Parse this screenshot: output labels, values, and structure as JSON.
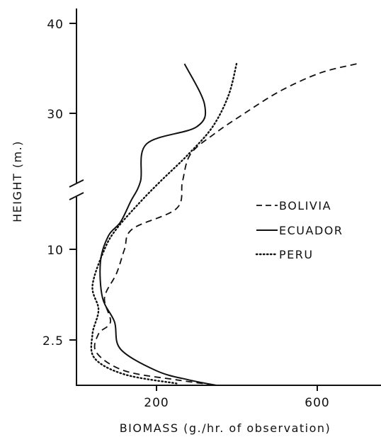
{
  "chart_data": {
    "type": "line",
    "title": "",
    "xlabel": "BIOMASS (g./hr. of observation)",
    "ylabel": "HEIGHT (m.)",
    "xlim": [
      0,
      700
    ],
    "y_tick_labels": [
      "2.5",
      "10",
      "30",
      "40"
    ],
    "x_tick_labels": [
      "200",
      "600"
    ],
    "x_ticks": [
      200,
      600
    ],
    "y_axis_note": "axis broken between 10 and 30",
    "grid": false,
    "legend_position": "right",
    "series": [
      {
        "name": "BOLIVIA",
        "style": "dashed",
        "points": [
          {
            "x": 700,
            "y": 35.5
          },
          {
            "x": 610,
            "y": 34.5
          },
          {
            "x": 510,
            "y": 32.5
          },
          {
            "x": 420,
            "y": 30
          },
          {
            "x": 345,
            "y": 27
          },
          {
            "x": 285,
            "y": 24
          },
          {
            "x": 265,
            "y": 20
          },
          {
            "x": 250,
            "y": 16
          },
          {
            "x": 140,
            "y": 13
          },
          {
            "x": 120,
            "y": 10
          },
          {
            "x": 100,
            "y": 8
          },
          {
            "x": 70,
            "y": 6
          },
          {
            "x": 85,
            "y": 4
          },
          {
            "x": 55,
            "y": 3
          },
          {
            "x": 50,
            "y": 1.8
          },
          {
            "x": 120,
            "y": 0.8
          },
          {
            "x": 250,
            "y": 0.3
          },
          {
            "x": 350,
            "y": 0
          }
        ]
      },
      {
        "name": "ECUADOR",
        "style": "solid",
        "points": [
          {
            "x": 270,
            "y": 35.5
          },
          {
            "x": 320,
            "y": 31
          },
          {
            "x": 300,
            "y": 28
          },
          {
            "x": 175,
            "y": 25.5
          },
          {
            "x": 160,
            "y": 20
          },
          {
            "x": 135,
            "y": 17
          },
          {
            "x": 110,
            "y": 14
          },
          {
            "x": 80,
            "y": 12
          },
          {
            "x": 60,
            "y": 9
          },
          {
            "x": 65,
            "y": 6
          },
          {
            "x": 95,
            "y": 4
          },
          {
            "x": 110,
            "y": 2
          },
          {
            "x": 200,
            "y": 0.8
          },
          {
            "x": 280,
            "y": 0.3
          },
          {
            "x": 350,
            "y": 0
          }
        ]
      },
      {
        "name": "PERU",
        "style": "dotted",
        "points": [
          {
            "x": 400,
            "y": 35.5
          },
          {
            "x": 380,
            "y": 32
          },
          {
            "x": 340,
            "y": 28
          },
          {
            "x": 280,
            "y": 24
          },
          {
            "x": 210,
            "y": 20
          },
          {
            "x": 160,
            "y": 17
          },
          {
            "x": 100,
            "y": 13
          },
          {
            "x": 70,
            "y": 10
          },
          {
            "x": 40,
            "y": 7
          },
          {
            "x": 55,
            "y": 5
          },
          {
            "x": 40,
            "y": 3
          },
          {
            "x": 45,
            "y": 1.5
          },
          {
            "x": 120,
            "y": 0.6
          },
          {
            "x": 250,
            "y": 0.1
          }
        ]
      }
    ]
  }
}
